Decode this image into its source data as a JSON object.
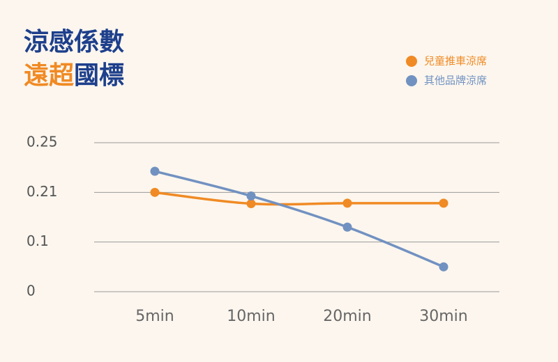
{
  "chart_data": {
    "type": "line",
    "title": "涼感係數",
    "subtitle": {
      "highlight": "遠超",
      "rest": "國標"
    },
    "categories": [
      "5min",
      "10min",
      "20min",
      "30min"
    ],
    "series": [
      {
        "name": "兒童推車涼席",
        "color": "#f08a24",
        "values": [
          0.21,
          0.185,
          0.186,
          0.186
        ]
      },
      {
        "name": "其他品牌涼席",
        "color": "#7191c1",
        "values": [
          0.227,
          0.202,
          0.133,
          0.05
        ]
      }
    ],
    "ylim": [
      0,
      0.25
    ],
    "yticks": [
      0,
      0.1,
      0.21,
      0.25
    ],
    "grid": true,
    "legend": "top-right"
  }
}
